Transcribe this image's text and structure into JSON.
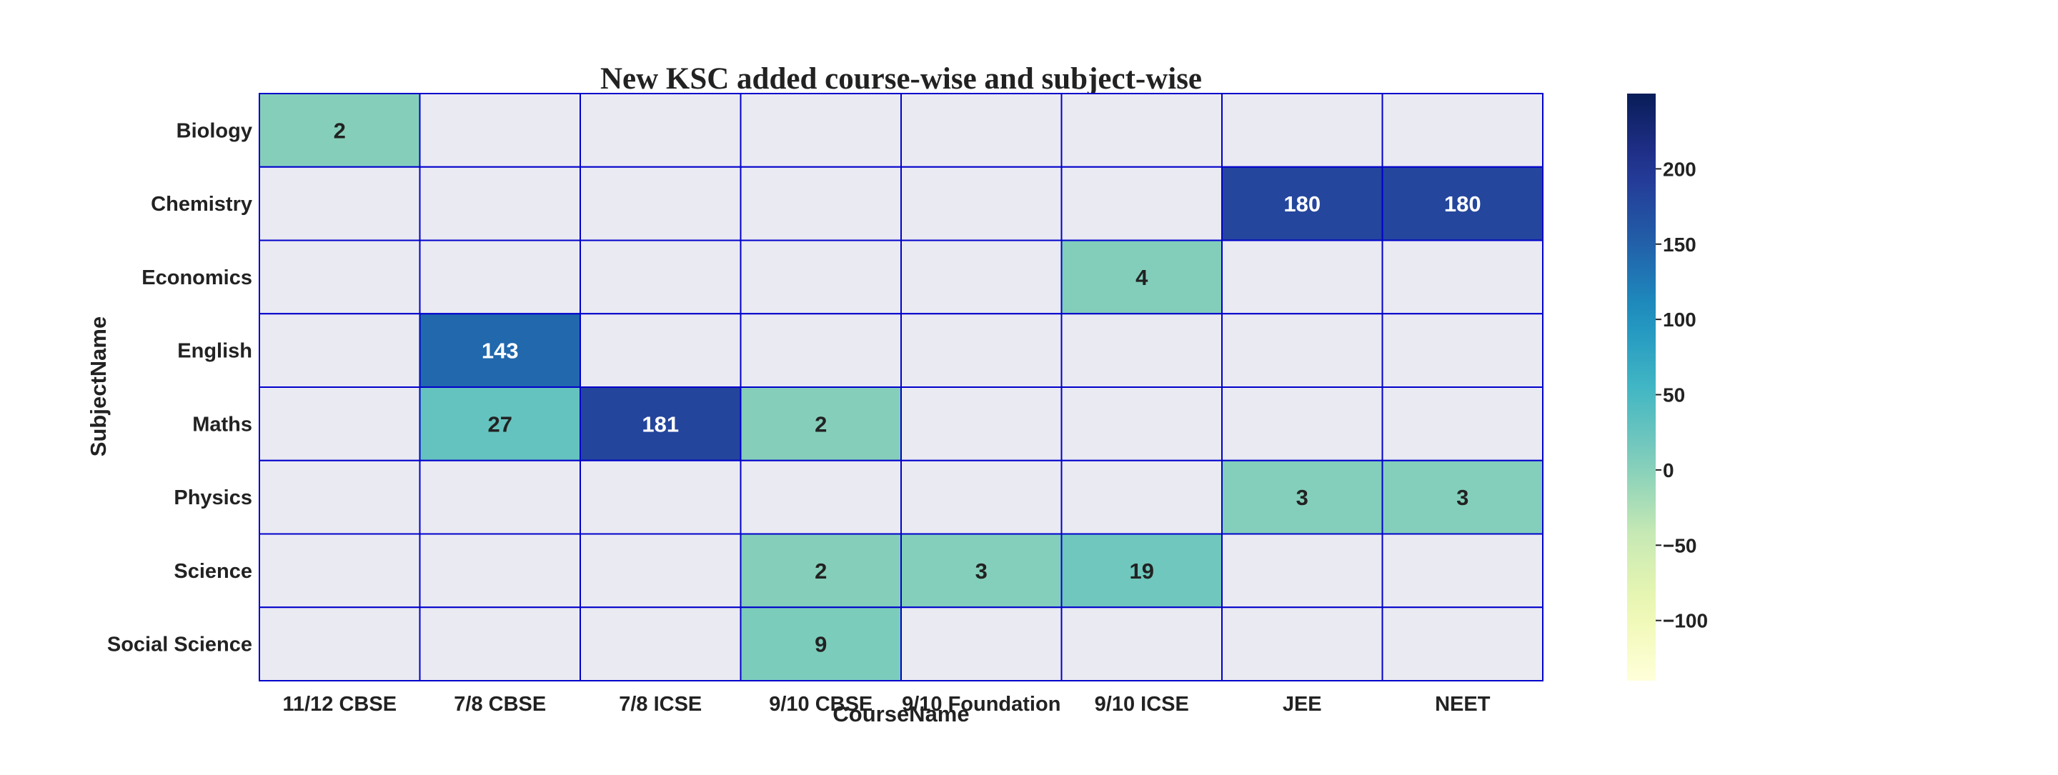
{
  "chart_data": {
    "type": "heatmap",
    "title": "New KSC added course-wise and subject-wise",
    "xlabel": "CourseName",
    "ylabel": "SubjectName",
    "x_categories": [
      "11/12 CBSE",
      "7/8 CBSE",
      "7/8 ICSE",
      "9/10 CBSE",
      "9/10 Foundation",
      "9/10 ICSE",
      "JEE",
      "NEET"
    ],
    "y_categories": [
      "Biology",
      "Chemistry",
      "Economics",
      "English",
      "Maths",
      "Physics",
      "Science",
      "Social Science"
    ],
    "values": [
      [
        2,
        null,
        null,
        null,
        null,
        null,
        null,
        null
      ],
      [
        null,
        null,
        null,
        null,
        null,
        null,
        180,
        180
      ],
      [
        null,
        null,
        null,
        null,
        null,
        4,
        null,
        null
      ],
      [
        null,
        143,
        null,
        null,
        null,
        null,
        null,
        null
      ],
      [
        null,
        27,
        181,
        2,
        null,
        null,
        null,
        null
      ],
      [
        null,
        null,
        null,
        null,
        null,
        null,
        3,
        3
      ],
      [
        null,
        null,
        null,
        2,
        3,
        19,
        null,
        null
      ],
      [
        null,
        null,
        null,
        9,
        null,
        null,
        null,
        null
      ]
    ],
    "colormap": "YlGnBu",
    "vmin": -140,
    "vmax": 250,
    "colorbar_ticks": [
      -100,
      -50,
      0,
      50,
      100,
      150,
      200
    ],
    "colorbar_tick_labels": [
      "−100",
      "−50",
      "0",
      "50",
      "100",
      "150",
      "200"
    ],
    "missing_color": "#eaeaf2",
    "cell_border_color": "#0000cc",
    "grid": true
  }
}
